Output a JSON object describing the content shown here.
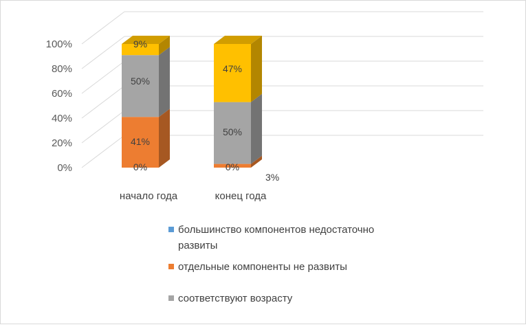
{
  "chart_data": {
    "type": "bar",
    "stacked": true,
    "three_d": true,
    "categories": [
      "начало года",
      "конец года"
    ],
    "ylim": [
      0,
      100
    ],
    "yticks": [
      "0%",
      "20%",
      "40%",
      "60%",
      "80%",
      "100%"
    ],
    "grid": true,
    "legend_position": "bottom",
    "series": [
      {
        "name": "большинство компонентов недостаточно развиты",
        "color": "#5b9bd5",
        "values": [
          0,
          0
        ],
        "labels": [
          "0%",
          "0%"
        ]
      },
      {
        "name": "отдельные компоненты не развиты",
        "color": "#ed7d31",
        "values": [
          41,
          3
        ],
        "labels": [
          "41%",
          "3%"
        ]
      },
      {
        "name": "соответствуют возрасту",
        "color": "#a5a5a5",
        "values": [
          50,
          50
        ],
        "labels": [
          "50%",
          "50%"
        ]
      },
      {
        "name": "",
        "color": "#ffc000",
        "values": [
          9,
          47
        ],
        "labels": [
          "9%",
          "47%"
        ]
      }
    ]
  }
}
